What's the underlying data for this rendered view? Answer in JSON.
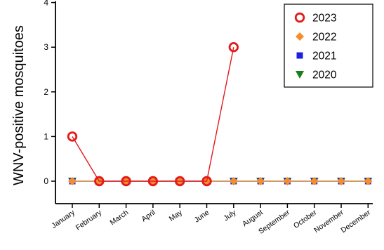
{
  "chart_data": {
    "type": "line",
    "title": "",
    "xlabel": "",
    "ylabel": "WNV-positive mosquitoes",
    "ylim": [
      0,
      4
    ],
    "yticks": [
      0,
      1,
      2,
      3,
      4
    ],
    "categories": [
      "January",
      "February",
      "March",
      "April",
      "May",
      "June",
      "July",
      "August",
      "September",
      "October",
      "November",
      "December"
    ],
    "grid": false,
    "legend": "top-right",
    "series": [
      {
        "name": "2023",
        "color": "#e41a1c",
        "marker": "open-circle",
        "values": [
          1,
          0,
          0,
          0,
          0,
          0,
          3,
          null,
          null,
          null,
          null,
          null
        ]
      },
      {
        "name": "2022",
        "color": "#f28e2b",
        "marker": "diamond",
        "values": [
          0,
          0,
          0,
          0,
          0,
          0,
          0,
          0,
          0,
          0,
          0,
          0
        ]
      },
      {
        "name": "2021",
        "color": "#1f1fe0",
        "marker": "square",
        "values": [
          0,
          0,
          0,
          0,
          0,
          0,
          0,
          0,
          0,
          0,
          0,
          0
        ]
      },
      {
        "name": "2020",
        "color": "#1a7f1a",
        "marker": "triangle-down",
        "values": [
          0,
          0,
          0,
          0,
          0,
          0,
          0,
          0,
          0,
          0,
          0,
          0
        ]
      }
    ]
  }
}
